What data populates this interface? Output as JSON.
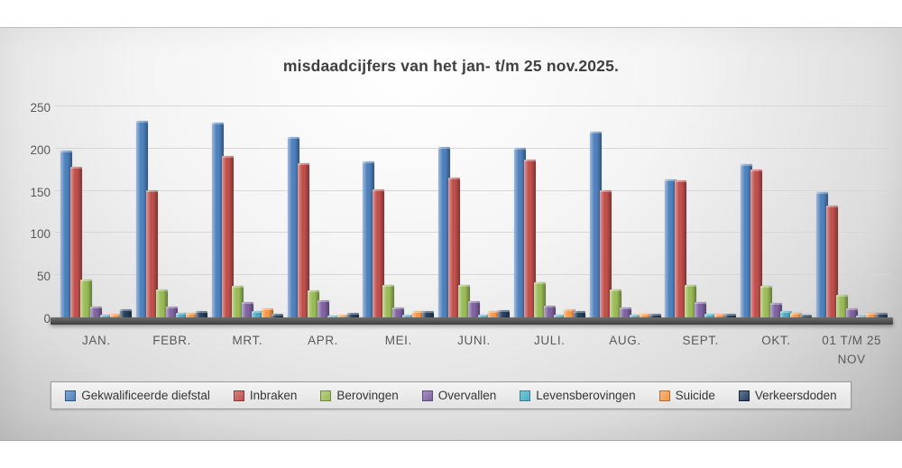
{
  "title": "misdaadcijfers van het jan- t/m 25 nov.2025.",
  "chart_data": {
    "type": "bar",
    "title": "misdaadcijfers van het jan- t/m 25 nov.2025.",
    "categories": [
      "JAN.",
      "FEBR.",
      "MRT.",
      "APR.",
      "MEI.",
      "JUNI.",
      "JULI.",
      "AUG.",
      "SEPT.",
      "OKT.",
      "01 T/M 25 NOV"
    ],
    "series": [
      {
        "name": "Gekwalificeerde diefstal",
        "color": "#4f81bd",
        "border": "#2c5984",
        "values": [
          198,
          233,
          231,
          214,
          185,
          202,
          201,
          220,
          163,
          182,
          148
        ]
      },
      {
        "name": "Inbraken",
        "color": "#c0504d",
        "border": "#8c3836",
        "values": [
          178,
          151,
          191,
          183,
          152,
          166,
          187,
          151,
          162,
          175,
          133
        ]
      },
      {
        "name": "Berovingen",
        "color": "#9bbb59",
        "border": "#71893f",
        "values": [
          45,
          33,
          37,
          32,
          38,
          38,
          42,
          33,
          39,
          37,
          27
        ]
      },
      {
        "name": "Overvallen",
        "color": "#8064a2",
        "border": "#5e4a78",
        "values": [
          13,
          13,
          18,
          20,
          12,
          19,
          14,
          12,
          18,
          17,
          11
        ]
      },
      {
        "name": "Levensberovingen",
        "color": "#4bacc6",
        "border": "#357d91",
        "values": [
          3,
          5,
          8,
          2,
          3,
          3,
          3,
          3,
          4,
          7,
          2
        ]
      },
      {
        "name": "Suicide",
        "color": "#f79646",
        "border": "#b66d31",
        "values": [
          4,
          5,
          11,
          3,
          8,
          8,
          10,
          4,
          4,
          5,
          5
        ]
      },
      {
        "name": "Verkeersdoden",
        "color": "#254061",
        "border": "#152639",
        "values": [
          10,
          7,
          4,
          5,
          8,
          9,
          7,
          4,
          4,
          3,
          5
        ]
      }
    ],
    "ylim": [
      0,
      250
    ],
    "yticks": [
      0,
      50,
      100,
      150,
      200,
      250
    ],
    "grid": true,
    "legend_position": "bottom"
  }
}
